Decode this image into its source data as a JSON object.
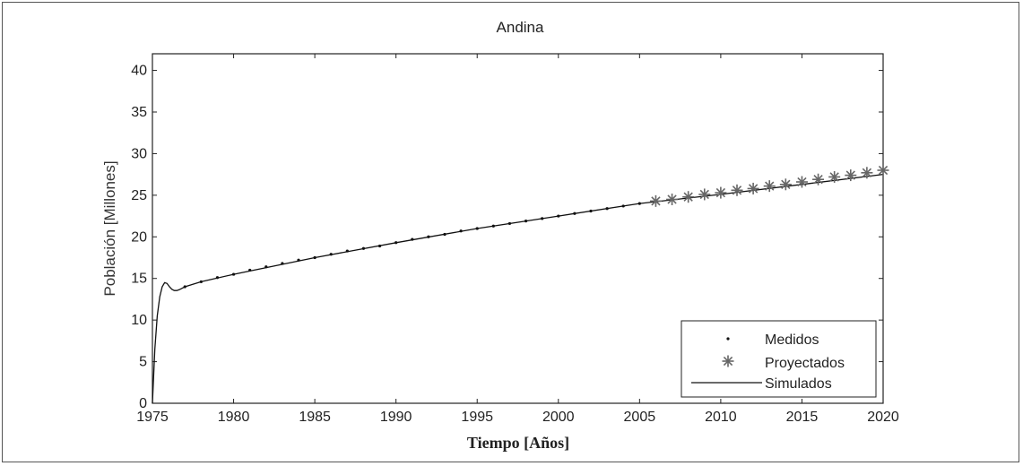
{
  "chart_data": {
    "type": "line",
    "title": "Andina",
    "xlabel": "Tiempo [Años]",
    "ylabel": "Población [Millones]",
    "xlim": [
      1975,
      2020
    ],
    "ylim": [
      0,
      42
    ],
    "xticks": [
      1975,
      1980,
      1985,
      1990,
      1995,
      2000,
      2005,
      2010,
      2015,
      2020
    ],
    "yticks": [
      0,
      5,
      10,
      15,
      20,
      25,
      30,
      35,
      40
    ],
    "grid": false,
    "legend_position": "bottom-right",
    "series": [
      {
        "name": "Medidos",
        "marker": "dot",
        "x": [
          1977,
          1978,
          1979,
          1980,
          1981,
          1982,
          1983,
          1984,
          1985,
          1986,
          1987,
          1988,
          1989,
          1990,
          1991,
          1992,
          1993,
          1994,
          1995,
          1996,
          1997,
          1998,
          1999,
          2000,
          2001,
          2002,
          2003,
          2004,
          2005
        ],
        "y": [
          14.0,
          14.6,
          15.1,
          15.5,
          16.0,
          16.4,
          16.8,
          17.2,
          17.5,
          17.9,
          18.3,
          18.6,
          18.9,
          19.3,
          19.7,
          20.0,
          20.3,
          20.7,
          21.0,
          21.3,
          21.6,
          21.9,
          22.2,
          22.5,
          22.8,
          23.1,
          23.4,
          23.7,
          24.0
        ]
      },
      {
        "name": "Proyectados",
        "marker": "asterisk",
        "x": [
          2006,
          2007,
          2008,
          2009,
          2010,
          2011,
          2012,
          2013,
          2014,
          2015,
          2016,
          2017,
          2018,
          2019,
          2020
        ],
        "y": [
          24.3,
          24.5,
          24.8,
          25.1,
          25.3,
          25.6,
          25.8,
          26.1,
          26.3,
          26.6,
          26.9,
          27.2,
          27.4,
          27.7,
          28.0
        ]
      },
      {
        "name": "Simulados",
        "marker": "line",
        "x": [
          1975,
          1975.15,
          1975.3,
          1975.45,
          1975.6,
          1975.75,
          1975.9,
          1976.05,
          1976.2,
          1976.35,
          1976.5,
          1976.65,
          1976.8,
          1977,
          1978,
          1980,
          1985,
          1990,
          1995,
          2000,
          2005,
          2010,
          2015,
          2020
        ],
        "y": [
          0,
          6.5,
          10.5,
          12.8,
          14.0,
          14.5,
          14.4,
          14.0,
          13.7,
          13.55,
          13.55,
          13.65,
          13.8,
          14.0,
          14.6,
          15.5,
          17.5,
          19.3,
          21.0,
          22.5,
          24.0,
          25.1,
          26.3,
          27.5
        ]
      }
    ]
  }
}
